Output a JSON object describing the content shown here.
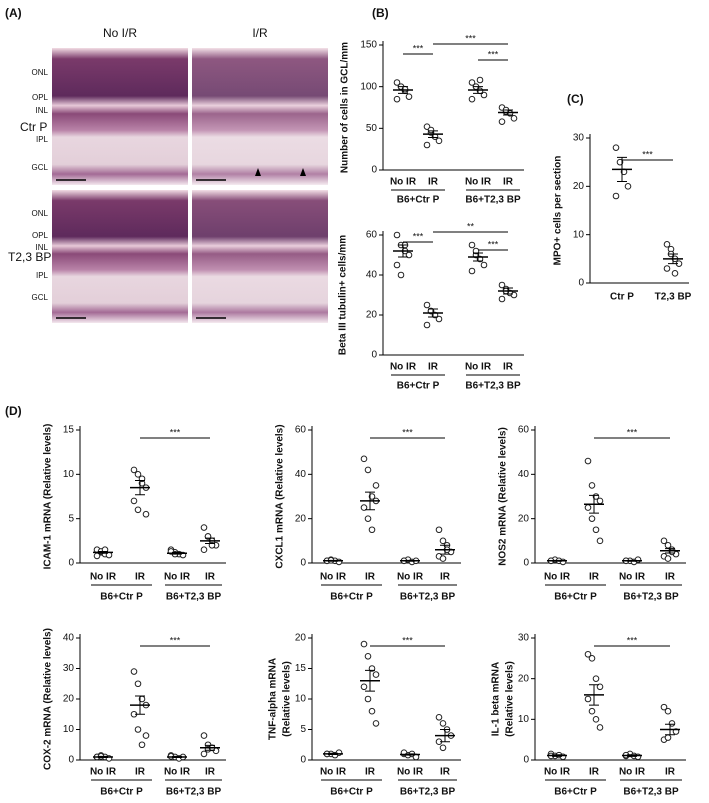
{
  "panel_labels": [
    "(A)",
    "(B)",
    "(C)",
    "(D)"
  ],
  "histology": {
    "columns": [
      "No I/R",
      "I/R"
    ],
    "rows": [
      "Ctr P",
      "T2,3 BP"
    ],
    "layers_top": [
      "ONL",
      "OPL",
      "INL",
      "IPL",
      "GCL"
    ],
    "layers_bottom": [
      "ONL",
      "OPL",
      "INL",
      "IPL",
      "GCL"
    ]
  },
  "chart_data": [
    {
      "type": "dot",
      "ylabel": [
        "Number of cells in GCL/mm"
      ],
      "categories": [
        "No IR",
        "IR",
        "No IR",
        "IR"
      ],
      "groups": [
        "B6+Ctr P",
        "B6+T2,3 BP"
      ],
      "ylim": [
        0,
        150
      ],
      "yticks": [
        0,
        50,
        100,
        150
      ],
      "points": [
        [
          105,
          100,
          95,
          88,
          85,
          100,
          97
        ],
        [
          52,
          45,
          40,
          35,
          30,
          48
        ],
        [
          105,
          100,
          95,
          90,
          85,
          100,
          108
        ],
        [
          75,
          70,
          68,
          62,
          58,
          72
        ]
      ],
      "means": [
        96,
        43,
        96,
        69
      ],
      "sems": [
        4,
        4,
        4,
        3
      ],
      "brackets": [
        "***",
        "***",
        "***"
      ]
    },
    {
      "type": "dot",
      "ylabel": [
        "Beta III tubulin+ cells/mm"
      ],
      "categories": [
        "No IR",
        "IR",
        "No IR",
        "IR"
      ],
      "groups": [
        "B6+Ctr P",
        "B6+T2,3 BP"
      ],
      "ylim": [
        0,
        60
      ],
      "yticks": [
        0,
        20,
        40,
        60
      ],
      "points": [
        [
          60,
          55,
          52,
          50,
          45,
          40,
          55
        ],
        [
          25,
          22,
          20,
          18,
          15,
          22
        ],
        [
          55,
          50,
          48,
          45,
          42,
          52
        ],
        [
          35,
          33,
          31,
          30,
          28,
          32
        ]
      ],
      "means": [
        52,
        21,
        49,
        32
      ],
      "sems": [
        3,
        2,
        2,
        1.5
      ],
      "brackets": [
        "***",
        "**",
        "***"
      ]
    },
    {
      "type": "dot",
      "ylabel": [
        "MPO+ cells per section"
      ],
      "categories": [
        "Ctr P",
        "T2,3 BP"
      ],
      "ylim": [
        0,
        30
      ],
      "yticks": [
        0,
        10,
        20,
        30
      ],
      "points": [
        [
          28,
          25,
          23,
          20,
          18
        ],
        [
          8,
          7,
          5,
          4,
          3,
          6,
          2
        ]
      ],
      "means": [
        23.5,
        5
      ],
      "sems": [
        2.5,
        1
      ],
      "brackets": [
        "***"
      ]
    },
    {
      "type": "dot",
      "ylabel": [
        "ICAM-1 mRNA (Relative levels)"
      ],
      "categories": [
        "No IR",
        "IR",
        "No IR",
        "IR"
      ],
      "groups": [
        "B6+Ctr P",
        "B6+T2,3 BP"
      ],
      "ylim": [
        0,
        15
      ],
      "yticks": [
        0,
        5,
        10,
        15
      ],
      "points": [
        [
          1.5,
          1.2,
          1,
          0.9,
          0.8,
          1.3,
          1.5
        ],
        [
          10.5,
          10,
          9,
          8.5,
          7,
          6,
          9.5,
          5.5
        ],
        [
          1.5,
          1.2,
          1,
          0.9,
          1.3,
          1
        ],
        [
          4,
          3,
          2.5,
          2,
          1.5,
          3,
          2
        ]
      ],
      "means": [
        1.2,
        8.5,
        1.1,
        2.5
      ],
      "sems": [
        0.1,
        0.8,
        0.1,
        0.3
      ],
      "brackets": [
        "***"
      ]
    },
    {
      "type": "dot",
      "ylabel": [
        "CXCL1 mRNA (Relative levels)"
      ],
      "categories": [
        "No IR",
        "IR",
        "No IR",
        "IR"
      ],
      "groups": [
        "B6+Ctr P",
        "B6+T2,3 BP"
      ],
      "ylim": [
        0,
        60
      ],
      "yticks": [
        0,
        20,
        40,
        60
      ],
      "points": [
        [
          1,
          1.5,
          1,
          0.5,
          1,
          1.2
        ],
        [
          47,
          42,
          30,
          28,
          25,
          20,
          15,
          35
        ],
        [
          1,
          1.5,
          0.5,
          1,
          1
        ],
        [
          15,
          10,
          8,
          5,
          3,
          2,
          6
        ]
      ],
      "means": [
        1,
        28,
        1,
        6
      ],
      "sems": [
        0.2,
        4,
        0.2,
        2
      ],
      "brackets": [
        "***"
      ]
    },
    {
      "type": "dot",
      "ylabel": [
        "NOS2 mRNA (Relative levels)"
      ],
      "categories": [
        "No IR",
        "IR",
        "No IR",
        "IR"
      ],
      "groups": [
        "B6+Ctr P",
        "B6+T2,3 BP"
      ],
      "ylim": [
        0,
        60
      ],
      "yticks": [
        0,
        20,
        40,
        60
      ],
      "points": [
        [
          1,
          1.5,
          1,
          0.5,
          1
        ],
        [
          46,
          35,
          30,
          28,
          25,
          20,
          15,
          10
        ],
        [
          1,
          1,
          0.5,
          1.5,
          1
        ],
        [
          10,
          8,
          6,
          4,
          3,
          2,
          5
        ]
      ],
      "means": [
        1,
        26.5,
        1,
        5.5
      ],
      "sems": [
        0.2,
        4,
        0.2,
        1
      ],
      "brackets": [
        "***"
      ]
    },
    {
      "type": "dot",
      "ylabel": [
        "COX-2 mRNA (Relative levels)"
      ],
      "categories": [
        "No IR",
        "IR",
        "No IR",
        "IR"
      ],
      "groups": [
        "B6+Ctr P",
        "B6+T2,3 BP"
      ],
      "ylim": [
        0,
        40
      ],
      "yticks": [
        0,
        10,
        20,
        30,
        40
      ],
      "points": [
        [
          1,
          1.5,
          1,
          0.5,
          1,
          1.2
        ],
        [
          29,
          25,
          20,
          18,
          15,
          10,
          5,
          8
        ],
        [
          1.5,
          1,
          0.5,
          1,
          1.2
        ],
        [
          8,
          5,
          4,
          3,
          2,
          3.5,
          4
        ]
      ],
      "means": [
        1,
        18,
        1,
        4
      ],
      "sems": [
        0.2,
        3,
        0.2,
        0.8
      ],
      "brackets": [
        "***"
      ]
    },
    {
      "type": "dot",
      "ylabel": [
        "TNF-alpha mRNA",
        "(Relative levels)"
      ],
      "categories": [
        "No IR",
        "IR",
        "No IR",
        "IR"
      ],
      "groups": [
        "B6+Ctr P",
        "B6+T2,3 BP"
      ],
      "ylim": [
        0,
        20
      ],
      "yticks": [
        0,
        5,
        10,
        15,
        20
      ],
      "points": [
        [
          1,
          1,
          0.8,
          1.2,
          1
        ],
        [
          19,
          17,
          15,
          14,
          12,
          10,
          8,
          6
        ],
        [
          1,
          0.8,
          1,
          0.5,
          1.2
        ],
        [
          7,
          6,
          5,
          4,
          3,
          2
        ]
      ],
      "means": [
        1,
        13,
        0.9,
        4
      ],
      "sems": [
        0.1,
        1.7,
        0.1,
        1
      ],
      "brackets": [
        "***"
      ]
    },
    {
      "type": "dot",
      "ylabel": [
        "IL-1 beta mRNA",
        "(Relative levels)"
      ],
      "categories": [
        "No IR",
        "IR",
        "No IR",
        "IR"
      ],
      "groups": [
        "B6+Ctr P",
        "B6+T2,3 BP"
      ],
      "ylim": [
        0,
        30
      ],
      "yticks": [
        0,
        10,
        20,
        30
      ],
      "points": [
        [
          1.5,
          1,
          1.2,
          0.8,
          1
        ],
        [
          26,
          25,
          20,
          18,
          15,
          12,
          10,
          8
        ],
        [
          1,
          1.5,
          1,
          0.8,
          1.2
        ],
        [
          13,
          12,
          9,
          7,
          5,
          5.5
        ]
      ],
      "means": [
        1.1,
        16,
        1.1,
        7.5
      ],
      "sems": [
        0.2,
        2.5,
        0.2,
        1.3
      ],
      "brackets": [
        "***"
      ]
    }
  ]
}
